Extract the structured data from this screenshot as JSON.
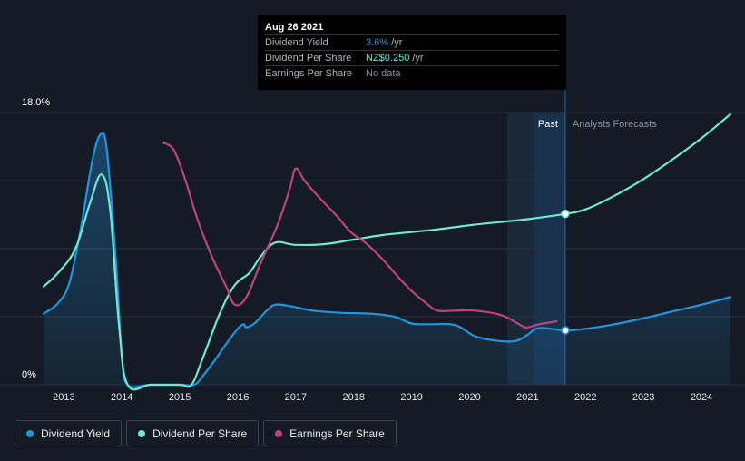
{
  "tooltip": {
    "date": "Aug 26 2021",
    "rows": [
      {
        "name": "Dividend Yield",
        "value": "3.6%",
        "unit": " /yr",
        "color": "#2394df"
      },
      {
        "name": "Dividend Per Share",
        "value": "NZ$0.250",
        "unit": " /yr",
        "color": "#6fe8d4"
      },
      {
        "name": "Earnings Per Share",
        "value": "No data",
        "unit": "",
        "color": "#8a919b"
      }
    ]
  },
  "regions": {
    "past_label": "Past",
    "forecast_label": "Analysts Forecasts"
  },
  "legend": [
    {
      "label": "Dividend Yield",
      "color": "#2394df"
    },
    {
      "label": "Dividend Per Share",
      "color": "#6fe8d4"
    },
    {
      "label": "Earnings Per Share",
      "color": "#c0427e"
    }
  ],
  "chart_data": {
    "type": "line",
    "y_top_label": "18.0%",
    "y_bottom_label": "0%",
    "ylim": [
      0,
      18
    ],
    "xlim": [
      2012.65,
      2024.5
    ],
    "x_ticks": [
      "2013",
      "2014",
      "2015",
      "2016",
      "2017",
      "2018",
      "2019",
      "2020",
      "2021",
      "2022",
      "2023",
      "2024"
    ],
    "past_start": 2020.65,
    "forecast_start": 2021.65,
    "series": [
      {
        "name": "Dividend Yield",
        "color": "#2394df",
        "fill": true,
        "points": [
          [
            2012.65,
            4.7
          ],
          [
            2012.9,
            5.4
          ],
          [
            2013.1,
            6.8
          ],
          [
            2013.3,
            10.5
          ],
          [
            2013.5,
            15.0
          ],
          [
            2013.65,
            16.6
          ],
          [
            2013.75,
            15.2
          ],
          [
            2013.9,
            8.0
          ],
          [
            2014.0,
            2.0
          ],
          [
            2014.1,
            0
          ],
          [
            2014.5,
            0
          ],
          [
            2015.0,
            0
          ],
          [
            2015.25,
            0
          ],
          [
            2015.4,
            0.6
          ],
          [
            2015.6,
            1.6
          ],
          [
            2015.8,
            2.7
          ],
          [
            2016.0,
            3.7
          ],
          [
            2016.1,
            4.0
          ],
          [
            2016.15,
            3.8
          ],
          [
            2016.3,
            4.1
          ],
          [
            2016.5,
            4.9
          ],
          [
            2016.65,
            5.3
          ],
          [
            2016.9,
            5.2
          ],
          [
            2017.3,
            4.9
          ],
          [
            2017.8,
            4.75
          ],
          [
            2018.3,
            4.7
          ],
          [
            2018.7,
            4.5
          ],
          [
            2019.0,
            4.05
          ],
          [
            2019.3,
            4.0
          ],
          [
            2019.75,
            3.95
          ],
          [
            2020.1,
            3.2
          ],
          [
            2020.5,
            2.9
          ],
          [
            2020.8,
            2.9
          ],
          [
            2021.0,
            3.3
          ],
          [
            2021.2,
            3.75
          ],
          [
            2021.65,
            3.6
          ],
          [
            2022.0,
            3.7
          ],
          [
            2022.5,
            4.0
          ],
          [
            2023.0,
            4.4
          ],
          [
            2023.5,
            4.85
          ],
          [
            2024.0,
            5.3
          ],
          [
            2024.5,
            5.8
          ]
        ]
      },
      {
        "name": "Dividend Per Share",
        "color": "#6fe8d4",
        "fill": false,
        "points": [
          [
            2012.65,
            6.5
          ],
          [
            2012.9,
            7.4
          ],
          [
            2013.2,
            9.0
          ],
          [
            2013.45,
            12.0
          ],
          [
            2013.65,
            13.9
          ],
          [
            2013.8,
            11.5
          ],
          [
            2013.95,
            4.0
          ],
          [
            2014.1,
            0
          ],
          [
            2014.5,
            0
          ],
          [
            2015.0,
            0
          ],
          [
            2015.2,
            0
          ],
          [
            2015.4,
            1.8
          ],
          [
            2015.7,
            4.8
          ],
          [
            2015.95,
            6.6
          ],
          [
            2016.2,
            7.4
          ],
          [
            2016.4,
            8.5
          ],
          [
            2016.65,
            9.4
          ],
          [
            2017.0,
            9.25
          ],
          [
            2017.5,
            9.3
          ],
          [
            2018.0,
            9.6
          ],
          [
            2018.5,
            9.9
          ],
          [
            2019.0,
            10.1
          ],
          [
            2019.5,
            10.3
          ],
          [
            2020.0,
            10.55
          ],
          [
            2020.5,
            10.75
          ],
          [
            2021.0,
            10.95
          ],
          [
            2021.65,
            11.3
          ],
          [
            2022.0,
            11.6
          ],
          [
            2022.5,
            12.5
          ],
          [
            2023.0,
            13.6
          ],
          [
            2023.5,
            14.9
          ],
          [
            2024.0,
            16.3
          ],
          [
            2024.5,
            17.9
          ]
        ]
      },
      {
        "name": "Earnings Per Share",
        "color": "#c0427e",
        "fill": false,
        "points": [
          [
            2014.72,
            16.0
          ],
          [
            2014.9,
            15.5
          ],
          [
            2015.1,
            13.5
          ],
          [
            2015.3,
            11.0
          ],
          [
            2015.55,
            8.5
          ],
          [
            2015.8,
            6.5
          ],
          [
            2015.95,
            5.3
          ],
          [
            2016.15,
            5.8
          ],
          [
            2016.4,
            8.1
          ],
          [
            2016.7,
            10.7
          ],
          [
            2016.9,
            13.0
          ],
          [
            2017.0,
            14.3
          ],
          [
            2017.15,
            13.5
          ],
          [
            2017.4,
            12.4
          ],
          [
            2017.7,
            11.2
          ],
          [
            2017.95,
            10.1
          ],
          [
            2018.2,
            9.4
          ],
          [
            2018.5,
            8.3
          ],
          [
            2018.75,
            7.2
          ],
          [
            2019.0,
            6.2
          ],
          [
            2019.25,
            5.4
          ],
          [
            2019.45,
            4.9
          ],
          [
            2019.75,
            4.9
          ],
          [
            2020.1,
            4.9
          ],
          [
            2020.55,
            4.6
          ],
          [
            2020.9,
            3.9
          ],
          [
            2021.0,
            3.8
          ],
          [
            2021.2,
            4.0
          ],
          [
            2021.5,
            4.2
          ]
        ]
      }
    ],
    "markers": [
      {
        "series": "Dividend Yield",
        "x": 2021.65,
        "y": 3.6
      },
      {
        "series": "Dividend Per Share",
        "x": 2021.65,
        "y": 11.3
      }
    ]
  }
}
